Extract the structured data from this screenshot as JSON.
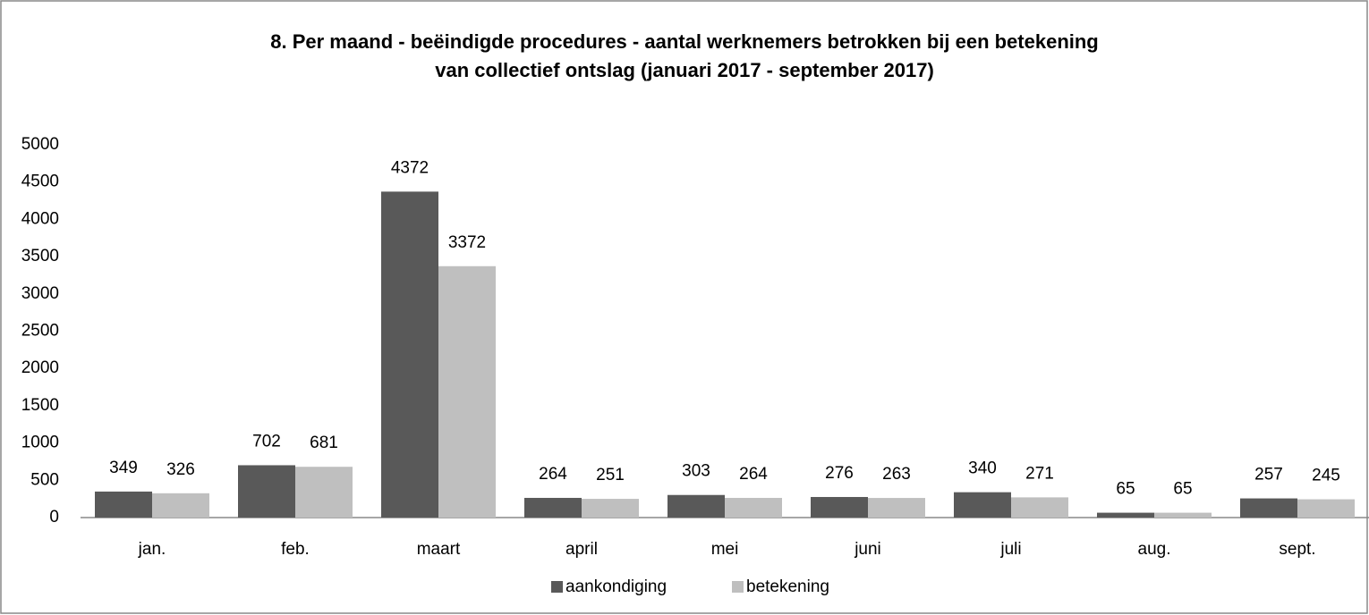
{
  "chart_data": {
    "type": "bar",
    "title": [
      "8. Per maand - beëindigde procedures - aantal werknemers betrokken bij een betekening",
      "van collectief ontslag (januari 2017 -  september 2017)"
    ],
    "categories": [
      "jan.",
      "feb.",
      "maart",
      "april",
      "mei",
      "juni",
      "juli",
      "aug.",
      "sept."
    ],
    "series": [
      {
        "name": "aankondiging",
        "color": "#595959",
        "values": [
          349,
          702,
          4372,
          264,
          303,
          276,
          340,
          65,
          257
        ]
      },
      {
        "name": "betekening",
        "color": "#bfbfbf",
        "values": [
          326,
          681,
          3372,
          251,
          264,
          263,
          271,
          65,
          245
        ]
      }
    ],
    "ylim": [
      0,
      5000
    ],
    "yticks": [
      0,
      500,
      1000,
      1500,
      2000,
      2500,
      3000,
      3500,
      4000,
      4500,
      5000
    ],
    "grid": false,
    "legend": "bottom"
  }
}
